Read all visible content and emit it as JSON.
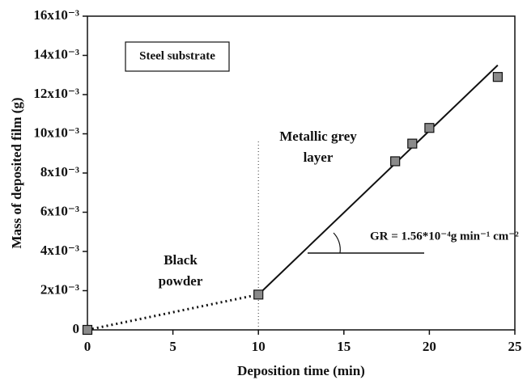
{
  "chart_data": {
    "type": "scatter",
    "x_label": "Deposition time (min)",
    "y_label": "Mass of deposited film (g)",
    "xlim": [
      0,
      25
    ],
    "ylim": [
      0,
      0.016
    ],
    "xticks": [
      0,
      5,
      10,
      15,
      20,
      25
    ],
    "yticks": [
      0,
      {
        "value": 0.002,
        "label": "2x10⁻³"
      },
      {
        "value": 0.004,
        "label": "4x10⁻³"
      },
      {
        "value": 0.006,
        "label": "6x10⁻³"
      },
      {
        "value": 0.008,
        "label": "8x10⁻³"
      },
      {
        "value": 0.01,
        "label": "10x10⁻³"
      },
      {
        "value": 0.012,
        "label": "12x10⁻³"
      },
      {
        "value": 0.014,
        "label": "14x10⁻³"
      },
      {
        "value": 0.016,
        "label": "16x10⁻³"
      }
    ],
    "series": [
      {
        "color": "#8a8a8a",
        "x": [
          0,
          10,
          18,
          19,
          20,
          24
        ],
        "values": [
          0,
          0.0018,
          0.0086,
          0.0095,
          0.0103,
          0.0129
        ]
      }
    ],
    "fit_line": {
      "x": [
        10,
        24
      ],
      "values": [
        0.0018,
        0.0135
      ]
    },
    "dotted_line": {
      "x": [
        0,
        10
      ],
      "values": [
        0,
        0.0018
      ]
    },
    "divider": {
      "x": 10,
      "top": 0.0097
    },
    "annotations": {
      "substrate": "Steel substrate",
      "grey_layer": [
        "Metallic grey",
        "layer"
      ],
      "black_powder": [
        "Black",
        "powder"
      ],
      "growth_rate": "GR = 1.56*10⁻⁴g min⁻¹ cm⁻²"
    }
  }
}
